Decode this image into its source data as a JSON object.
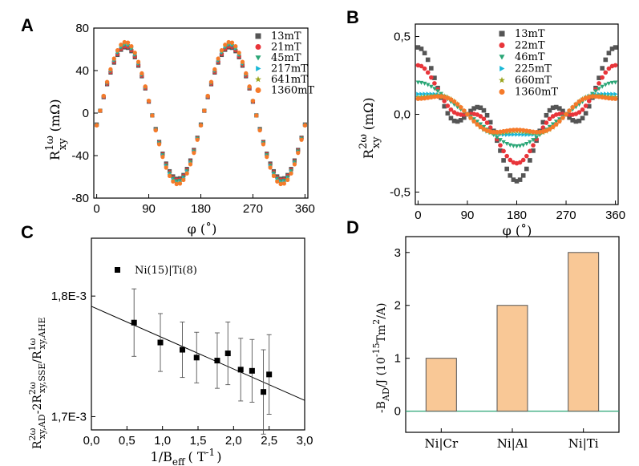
{
  "figure": {
    "panels": [
      "A",
      "B",
      "C",
      "D"
    ]
  },
  "chart_data": [
    {
      "id": "A",
      "type": "scatter",
      "panel_label": "A",
      "ylabel": "R_xy^{1ω} (mΩ)",
      "ylabel_main": "R",
      "ylabel_sup": "1ω",
      "ylabel_sub": "xy",
      "ylabel_unit": "(mΩ)",
      "xlabel": "φ (˚)",
      "xlim": [
        -5,
        365
      ],
      "ylim": [
        -80,
        80
      ],
      "xticks": [
        "0",
        "90",
        "180",
        "270",
        "360"
      ],
      "xtick_values": [
        0,
        90,
        180,
        270,
        360
      ],
      "yticks": [
        "80",
        "40",
        "0",
        "-40",
        "-80"
      ],
      "ytick_values": [
        80,
        40,
        0,
        -40,
        -80
      ],
      "x_range": [
        0,
        360
      ],
      "x_step": 6,
      "model": "a*sin(2*(phi-phase_deg))+b*sin(phi)",
      "phase_deg": 5,
      "legend": "top-right",
      "series": [
        {
          "name": "13mT",
          "color": "#555555",
          "marker": "square",
          "a": 62,
          "b": 0
        },
        {
          "name": "21mT",
          "color": "#e8353a",
          "marker": "circle",
          "a": 63,
          "b": 0
        },
        {
          "name": "45mT",
          "color": "#2aa676",
          "marker": "triangle-down",
          "a": 64,
          "b": 0
        },
        {
          "name": "217mT",
          "color": "#18b7d6",
          "marker": "triangle-right",
          "a": 65,
          "b": 0
        },
        {
          "name": "641mT",
          "color": "#9aa51f",
          "marker": "star",
          "a": 66,
          "b": 0
        },
        {
          "name": "1360mT",
          "color": "#f57a2a",
          "marker": "circle",
          "a": 67,
          "b": 0
        }
      ]
    },
    {
      "id": "B",
      "type": "scatter",
      "panel_label": "B",
      "ylabel_main": "R",
      "ylabel_sup": "2ω",
      "ylabel_sub": "xy",
      "ylabel_unit": "(mΩ)",
      "xlabel": "φ (˚)",
      "xlim": [
        -5,
        365
      ],
      "ylim": [
        -0.58,
        0.58
      ],
      "xticks": [
        "0",
        "90",
        "180",
        "270",
        "360"
      ],
      "xtick_values": [
        0,
        90,
        180,
        270,
        360
      ],
      "yticks": [
        "0,5",
        "0,0",
        "-0,5"
      ],
      "ytick_values": [
        0.5,
        0.0,
        -0.5
      ],
      "x_range": [
        0,
        360
      ],
      "x_step": 6,
      "model": "c1*cos(phi)+c3*cos(3*phi)",
      "legend": "top-right",
      "series": [
        {
          "name": "13mT",
          "color": "#555555",
          "marker": "square",
          "c1": 0.27,
          "c3": 0.16
        },
        {
          "name": "22mT",
          "color": "#e8353a",
          "marker": "circle",
          "c1": 0.23,
          "c3": 0.085
        },
        {
          "name": "46mT",
          "color": "#2aa676",
          "marker": "triangle-down",
          "c1": 0.19,
          "c3": 0.015
        },
        {
          "name": "225mT",
          "color": "#18b7d6",
          "marker": "triangle-right",
          "c1": 0.15,
          "c3": -0.02
        },
        {
          "name": "660mT",
          "color": "#9aa51f",
          "marker": "star",
          "c1": 0.14,
          "c3": -0.03
        },
        {
          "name": "1360mT",
          "color": "#f57a2a",
          "marker": "circle",
          "c1": 0.13,
          "c3": -0.03
        }
      ]
    },
    {
      "id": "C",
      "type": "scatter",
      "panel_label": "C",
      "xlabel_main": "1/B",
      "xlabel_sub": "eff",
      "xlabel_unit": "( T",
      "xlabel_sup": "-1",
      "xlabel_close": ")",
      "ylabel_text": "R2ωxy,AD-2R2ωxy,SSE/R1ωxy,AHE",
      "xlim": [
        0,
        3.0
      ],
      "ylim": [
        1.689,
        1.848
      ],
      "xticks": [
        "0,0",
        "0,5",
        "1,0",
        "1,5",
        "2,0",
        "2,5",
        "3,0"
      ],
      "xtick_values": [
        0,
        0.5,
        1.0,
        1.5,
        2.0,
        2.5,
        3.0
      ],
      "yticks": [
        "1,8E-3",
        "1,7E-3"
      ],
      "ytick_values": [
        1.8,
        1.7
      ],
      "legend": "top-left",
      "series": [
        {
          "name": "Ni(15)|Ti(8)",
          "color": "#000000",
          "marker": "square",
          "x": [
            0.6,
            0.97,
            1.28,
            1.48,
            1.77,
            1.92,
            2.1,
            2.26,
            2.42,
            2.5
          ],
          "y": [
            1.778,
            1.7615,
            1.7555,
            1.749,
            1.7465,
            1.7525,
            1.739,
            1.738,
            1.7205,
            1.735
          ],
          "yerr": [
            0.028,
            0.024,
            0.023,
            0.021,
            0.023,
            0.026,
            0.026,
            0.026,
            0.035,
            0.033
          ]
        }
      ],
      "fit": {
        "x": [
          0,
          3.0
        ],
        "y": [
          1.7915,
          1.7135
        ]
      }
    },
    {
      "id": "D",
      "type": "bar",
      "panel_label": "D",
      "ylabel_text": "-BAD/J (10-15Tm2/A)",
      "categories": [
        "Ni|Cr",
        "Ni|Al",
        "Ni|Ti"
      ],
      "values": [
        1,
        2,
        3
      ],
      "ylim": [
        -0.4,
        3.3
      ],
      "yticks": [
        "0",
        "1",
        "2",
        "3"
      ],
      "ytick_values": [
        0,
        1,
        2,
        3
      ],
      "bar_color": "#f9c896",
      "bar_edge": "#555555",
      "zero_line_color": "#2aa676"
    }
  ]
}
